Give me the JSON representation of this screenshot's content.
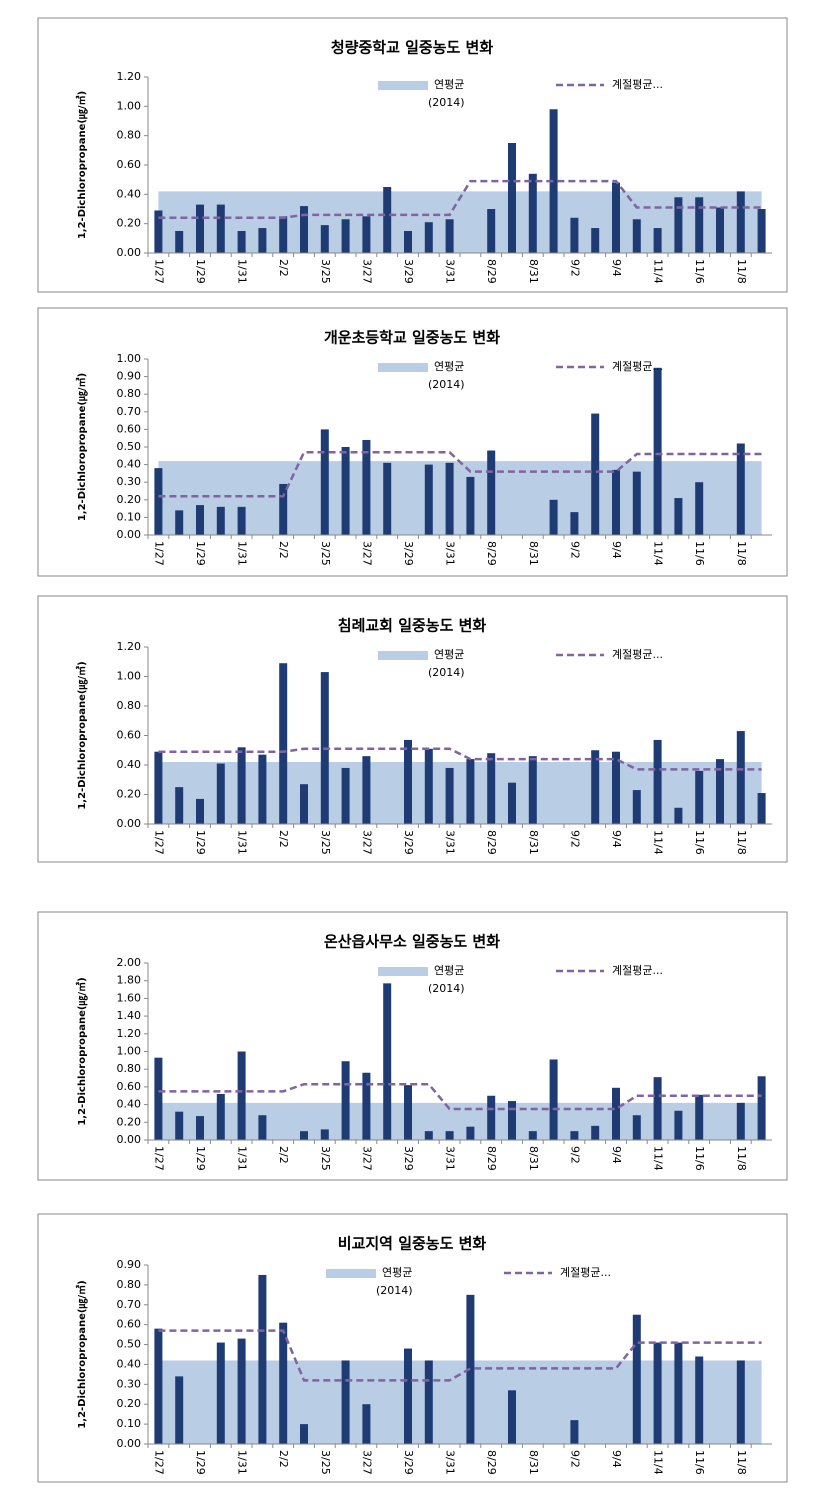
{
  "chart_data": [
    {
      "type": "bar",
      "title": "청량중학교 일중농도 변화",
      "y_label": "1,2-Dichloropropane(㎍/㎥)",
      "legend": "top",
      "categories": [
        "1/27",
        null,
        "1/29",
        null,
        "1/31",
        null,
        "2/2",
        null,
        "3/25",
        null,
        "3/27",
        null,
        "3/29",
        null,
        "3/31",
        null,
        "8/29",
        null,
        "8/31",
        null,
        "9/2",
        null,
        "9/4",
        null,
        "11/4",
        null,
        "11/6",
        null,
        "11/8",
        null
      ],
      "ylim": [
        0,
        1.2
      ],
      "yticks": [
        {
          "value": 0,
          "label": "0.00"
        },
        {
          "value": 0.2,
          "label": "0.20"
        },
        {
          "value": 0.4,
          "label": "0.40"
        },
        {
          "value": 0.6,
          "label": "0.60"
        },
        {
          "value": 0.8,
          "label": "0.80"
        },
        {
          "value": 1,
          "label": "1.00"
        },
        {
          "value": 1.2,
          "label": "1.20"
        }
      ],
      "series": [
        {
          "name": "연평균 (2014)",
          "type": "area",
          "color": "#b9cde5",
          "values": [
            0.42,
            0.42,
            0.42,
            0.42,
            0.42,
            0.42,
            0.42,
            0.42,
            0.42,
            0.42,
            0.42,
            0.42,
            0.42,
            0.42,
            0.42,
            0.42,
            0.42,
            0.42,
            0.42,
            0.42,
            0.42,
            0.42,
            0.42,
            0.42,
            0.42,
            0.42,
            0.42,
            0.42,
            0.42,
            0.42
          ]
        },
        {
          "type": "bar",
          "color": "#1f3b73",
          "values": [
            0.29,
            0.15,
            0.33,
            0.33,
            0.15,
            0.17,
            0.25,
            0.32,
            0.19,
            0.23,
            0.25,
            0.45,
            0.15,
            0.21,
            0.23,
            null,
            0.3,
            0.75,
            0.54,
            0.98,
            0.24,
            0.17,
            0.48,
            0.23,
            0.17,
            0.38,
            0.38,
            0.31,
            0.42,
            0.3
          ]
        },
        {
          "name": "계절평균...",
          "type": "line",
          "color": "#8064a2",
          "values": [
            0.24,
            0.24,
            0.24,
            0.24,
            0.24,
            0.24,
            0.24,
            0.26,
            0.26,
            0.26,
            0.26,
            0.26,
            0.26,
            0.26,
            0.26,
            0.49,
            0.49,
            0.49,
            0.49,
            0.49,
            0.49,
            0.49,
            0.49,
            0.31,
            0.31,
            0.31,
            0.31,
            0.31,
            0.31,
            0.31
          ]
        }
      ]
    },
    {
      "type": "bar",
      "title": "개운초등학교 일중농도 변화",
      "y_label": "1,2-Dichloropropane(㎍/㎥)",
      "legend": "top",
      "categories": [
        "1/27",
        null,
        "1/29",
        null,
        "1/31",
        null,
        "2/2",
        null,
        "3/25",
        null,
        "3/27",
        null,
        "3/29",
        null,
        "3/31",
        null,
        "8/29",
        null,
        "8/31",
        null,
        "9/2",
        null,
        "9/4",
        null,
        "11/4",
        null,
        "11/6",
        null,
        "11/8",
        null
      ],
      "ylim": [
        0,
        1.0
      ],
      "yticks": [
        {
          "value": 0,
          "label": "0.00"
        },
        {
          "value": 0.1,
          "label": "0.10"
        },
        {
          "value": 0.2,
          "label": "0.20"
        },
        {
          "value": 0.3,
          "label": "0.30"
        },
        {
          "value": 0.4,
          "label": "0.40"
        },
        {
          "value": 0.5,
          "label": "0.50"
        },
        {
          "value": 0.6,
          "label": "0.60"
        },
        {
          "value": 0.7,
          "label": "0.70"
        },
        {
          "value": 0.8,
          "label": "0.80"
        },
        {
          "value": 0.9,
          "label": "0.90"
        },
        {
          "value": 1,
          "label": "1.00"
        }
      ],
      "series": [
        {
          "name": "연평균 (2014)",
          "type": "area",
          "color": "#b9cde5",
          "values": [
            0.42,
            0.42,
            0.42,
            0.42,
            0.42,
            0.42,
            0.42,
            0.42,
            0.42,
            0.42,
            0.42,
            0.42,
            0.42,
            0.42,
            0.42,
            0.42,
            0.42,
            0.42,
            0.42,
            0.42,
            0.42,
            0.42,
            0.42,
            0.42,
            0.42,
            0.42,
            0.42,
            0.42,
            0.42,
            0.42
          ]
        },
        {
          "type": "bar",
          "color": "#1f3b73",
          "values": [
            0.38,
            0.14,
            0.17,
            0.16,
            0.16,
            null,
            0.29,
            null,
            0.6,
            0.5,
            0.54,
            0.41,
            null,
            0.4,
            0.41,
            0.33,
            0.48,
            null,
            null,
            0.2,
            0.13,
            0.69,
            0.37,
            0.36,
            0.95,
            0.21,
            0.3,
            null,
            0.52,
            null
          ]
        },
        {
          "name": "계절평균...",
          "type": "line",
          "color": "#8064a2",
          "values": [
            0.22,
            0.22,
            0.22,
            0.22,
            0.22,
            0.22,
            0.22,
            0.47,
            0.47,
            0.47,
            0.47,
            0.47,
            0.47,
            0.47,
            0.47,
            0.36,
            0.36,
            0.36,
            0.36,
            0.36,
            0.36,
            0.36,
            0.36,
            0.46,
            0.46,
            0.46,
            0.46,
            0.46,
            0.46,
            0.46
          ]
        }
      ]
    },
    {
      "type": "bar",
      "title": "침례교회 일중농도 변화",
      "y_label": "1,2-Dichloropropane(㎍/㎥)",
      "legend": "top",
      "categories": [
        "1/27",
        null,
        "1/29",
        null,
        "1/31",
        null,
        "2/2",
        null,
        "3/25",
        null,
        "3/27",
        null,
        "3/29",
        null,
        "3/31",
        null,
        "8/29",
        null,
        "8/31",
        null,
        "9/2",
        null,
        "9/4",
        null,
        "11/4",
        null,
        "11/6",
        null,
        "11/8",
        null
      ],
      "ylim": [
        0,
        1.2
      ],
      "yticks": [
        {
          "value": 0,
          "label": "0.00"
        },
        {
          "value": 0.2,
          "label": "0.20"
        },
        {
          "value": 0.4,
          "label": "0.40"
        },
        {
          "value": 0.6,
          "label": "0.60"
        },
        {
          "value": 0.8,
          "label": "0.80"
        },
        {
          "value": 1,
          "label": "1.00"
        },
        {
          "value": 1.2,
          "label": "1.20"
        }
      ],
      "series": [
        {
          "name": "연평균 (2014)",
          "type": "area",
          "color": "#b9cde5",
          "values": [
            0.42,
            0.42,
            0.42,
            0.42,
            0.42,
            0.42,
            0.42,
            0.42,
            0.42,
            0.42,
            0.42,
            0.42,
            0.42,
            0.42,
            0.42,
            0.42,
            0.42,
            0.42,
            0.42,
            0.42,
            0.42,
            0.42,
            0.42,
            0.42,
            0.42,
            0.42,
            0.42,
            0.42,
            0.42,
            0.42
          ]
        },
        {
          "type": "bar",
          "color": "#1f3b73",
          "values": [
            0.49,
            0.25,
            0.17,
            0.41,
            0.52,
            0.47,
            1.09,
            0.27,
            1.03,
            0.38,
            0.46,
            null,
            0.57,
            0.51,
            0.38,
            0.44,
            0.48,
            0.28,
            0.46,
            null,
            null,
            0.5,
            0.49,
            0.23,
            0.57,
            0.11,
            0.36,
            0.44,
            0.63,
            0.21
          ]
        },
        {
          "name": "계절평균...",
          "type": "line",
          "color": "#8064a2",
          "values": [
            0.49,
            0.49,
            0.49,
            0.49,
            0.49,
            0.49,
            0.49,
            0.51,
            0.51,
            0.51,
            0.51,
            0.51,
            0.51,
            0.51,
            0.51,
            0.44,
            0.44,
            0.44,
            0.44,
            0.44,
            0.44,
            0.44,
            0.44,
            0.37,
            0.37,
            0.37,
            0.37,
            0.37,
            0.37,
            0.37
          ]
        }
      ]
    },
    {
      "type": "bar",
      "title": "온산읍사무소 일중농도 변화",
      "y_label": "1,2-Dichloropropane(㎍/㎥)",
      "legend": "top",
      "categories": [
        "1/27",
        null,
        "1/29",
        null,
        "1/31",
        null,
        "2/2",
        null,
        "3/25",
        null,
        "3/27",
        null,
        "3/29",
        null,
        "3/31",
        null,
        "8/29",
        null,
        "8/31",
        null,
        "9/2",
        null,
        "9/4",
        null,
        "11/4",
        null,
        "11/6",
        null,
        "11/8",
        null
      ],
      "ylim": [
        0,
        2.0
      ],
      "yticks": [
        {
          "value": 0,
          "label": "0.00"
        },
        {
          "value": 0.2,
          "label": "0.20"
        },
        {
          "value": 0.4,
          "label": "0.40"
        },
        {
          "value": 0.6,
          "label": "0.60"
        },
        {
          "value": 0.8,
          "label": "0.80"
        },
        {
          "value": 1,
          "label": "1.00"
        },
        {
          "value": 1.2,
          "label": "1.20"
        },
        {
          "value": 1.4,
          "label": "1.40"
        },
        {
          "value": 1.6,
          "label": "1.60"
        },
        {
          "value": 1.8,
          "label": "1.80"
        },
        {
          "value": 2,
          "label": "2.00"
        }
      ],
      "series": [
        {
          "name": "연평균 (2014)",
          "type": "area",
          "color": "#b9cde5",
          "values": [
            0.42,
            0.42,
            0.42,
            0.42,
            0.42,
            0.42,
            0.42,
            0.42,
            0.42,
            0.42,
            0.42,
            0.42,
            0.42,
            0.42,
            0.42,
            0.42,
            0.42,
            0.42,
            0.42,
            0.42,
            0.42,
            0.42,
            0.42,
            0.42,
            0.42,
            0.42,
            0.42,
            0.42,
            0.42,
            0.42
          ]
        },
        {
          "type": "bar",
          "color": "#1f3b73",
          "values": [
            0.93,
            0.32,
            0.27,
            0.52,
            1.0,
            0.28,
            null,
            0.1,
            0.12,
            0.89,
            0.76,
            1.77,
            0.62,
            0.1,
            0.1,
            0.15,
            0.5,
            0.44,
            0.1,
            0.91,
            0.1,
            0.16,
            0.59,
            0.28,
            0.71,
            0.33,
            0.51,
            null,
            0.42,
            0.72
          ]
        },
        {
          "name": "계절평균...",
          "type": "line",
          "color": "#8064a2",
          "values": [
            0.55,
            0.55,
            0.55,
            0.55,
            0.55,
            0.55,
            0.55,
            0.63,
            0.63,
            0.63,
            0.63,
            0.63,
            0.63,
            0.63,
            0.35,
            0.35,
            0.35,
            0.35,
            0.35,
            0.35,
            0.35,
            0.35,
            0.35,
            0.5,
            0.5,
            0.5,
            0.5,
            0.5,
            0.5,
            0.5
          ]
        }
      ]
    },
    {
      "type": "bar",
      "title": "비교지역 일중농도 변화",
      "y_label": "1,2-Dichloropropane(㎍/㎥)",
      "legend": "top",
      "categories": [
        "1/27",
        null,
        "1/29",
        null,
        "1/31",
        null,
        "2/2",
        null,
        "3/25",
        null,
        "3/27",
        null,
        "3/29",
        null,
        "3/31",
        null,
        "8/29",
        null,
        "8/31",
        null,
        "9/2",
        null,
        "9/4",
        null,
        "11/4",
        null,
        "11/6",
        null,
        "11/8",
        null
      ],
      "ylim": [
        0,
        0.9
      ],
      "yticks": [
        {
          "value": 0,
          "label": "0.00"
        },
        {
          "value": 0.1,
          "label": "0.10"
        },
        {
          "value": 0.2,
          "label": "0.20"
        },
        {
          "value": 0.3,
          "label": "0.30"
        },
        {
          "value": 0.4,
          "label": "0.40"
        },
        {
          "value": 0.5,
          "label": "0.50"
        },
        {
          "value": 0.6,
          "label": "0.60"
        },
        {
          "value": 0.7,
          "label": "0.70"
        },
        {
          "value": 0.8,
          "label": "0.80"
        },
        {
          "value": 0.9,
          "label": "0.90"
        }
      ],
      "series": [
        {
          "name": "연평균 (2014)",
          "type": "area",
          "color": "#b9cde5",
          "values": [
            0.42,
            0.42,
            0.42,
            0.42,
            0.42,
            0.42,
            0.42,
            0.42,
            0.42,
            0.42,
            0.42,
            0.42,
            0.42,
            0.42,
            0.42,
            0.42,
            0.42,
            0.42,
            0.42,
            0.42,
            0.42,
            0.42,
            0.42,
            0.42,
            0.42,
            0.42,
            0.42,
            0.42,
            0.42,
            0.42
          ]
        },
        {
          "type": "bar",
          "color": "#1f3b73",
          "values": [
            0.58,
            0.34,
            null,
            0.51,
            0.53,
            0.85,
            0.61,
            0.1,
            null,
            0.42,
            0.2,
            null,
            0.48,
            0.42,
            null,
            0.75,
            null,
            0.27,
            null,
            null,
            0.12,
            null,
            null,
            0.65,
            0.51,
            0.51,
            0.44,
            null,
            0.42,
            null
          ]
        },
        {
          "name": "계절평균...",
          "type": "line",
          "color": "#8064a2",
          "values": [
            0.57,
            0.57,
            0.57,
            0.57,
            0.57,
            0.57,
            0.57,
            0.32,
            0.32,
            0.32,
            0.32,
            0.32,
            0.32,
            0.32,
            0.32,
            0.38,
            0.38,
            0.38,
            0.38,
            0.38,
            0.38,
            0.38,
            0.38,
            0.51,
            0.51,
            0.51,
            0.51,
            0.51,
            0.51,
            0.51
          ]
        }
      ]
    }
  ]
}
